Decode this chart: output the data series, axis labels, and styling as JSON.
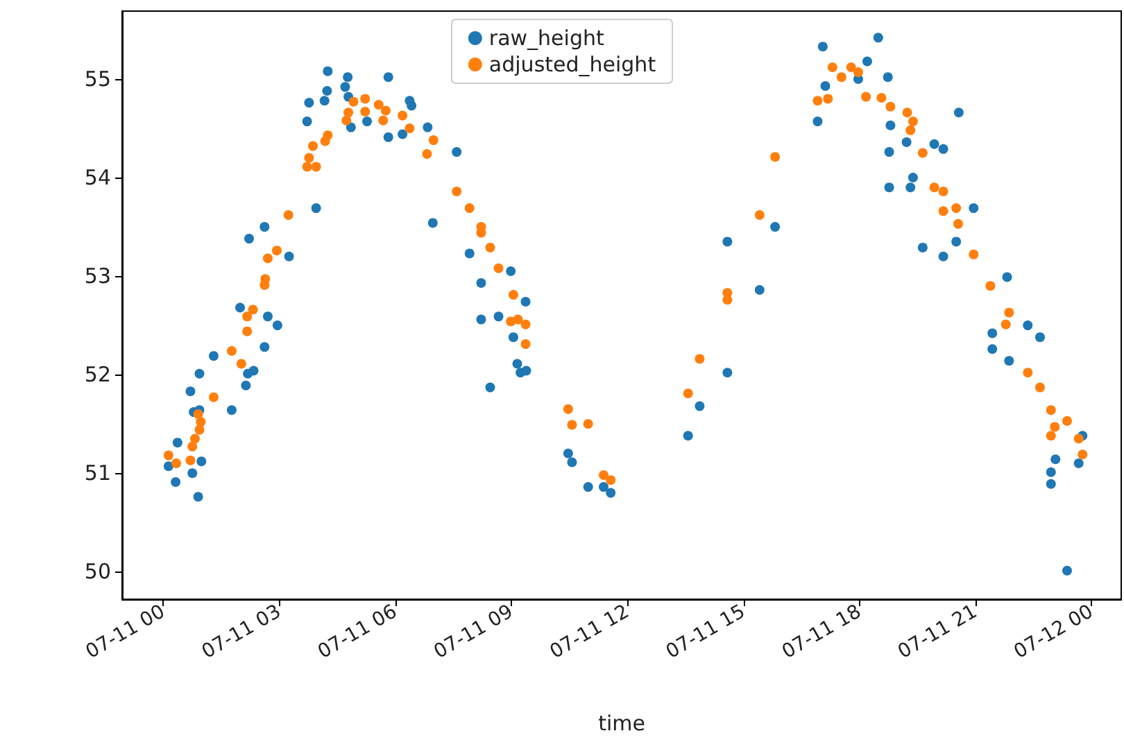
{
  "chart_data": {
    "type": "scatter",
    "xlabel": "time",
    "xlim": [
      "--07-10T22:56",
      "--07-12T00:46"
    ],
    "ylim": [
      49.72,
      55.69
    ],
    "xticks": [
      {
        "value": "--07-11T00:00",
        "label": "07-11 00"
      },
      {
        "value": "--07-11T03:00",
        "label": "07-11 03"
      },
      {
        "value": "--07-11T06:00",
        "label": "07-11 06"
      },
      {
        "value": "--07-11T09:00",
        "label": "07-11 09"
      },
      {
        "value": "--07-11T12:00",
        "label": "07-11 12"
      },
      {
        "value": "--07-11T15:00",
        "label": "07-11 15"
      },
      {
        "value": "--07-11T18:00",
        "label": "07-11 18"
      },
      {
        "value": "--07-11T21:00",
        "label": "07-11 21"
      },
      {
        "value": "--07-12T00:00",
        "label": "07-12 00"
      }
    ],
    "yticks": [
      50,
      51,
      52,
      53,
      54,
      55
    ],
    "grid": false,
    "legend": "top",
    "marker": "circle",
    "series": [
      {
        "name": "raw_height",
        "color": "#1f77b4",
        "x": [
          "--07-11T00:08",
          "--07-11T00:19",
          "--07-11T00:22",
          "--07-11T00:45",
          "--07-11T00:54",
          "--07-11T00:59",
          "--07-11T00:42",
          "--07-11T00:47",
          "--07-11T00:56",
          "--07-11T00:56",
          "--07-11T01:18",
          "--07-11T01:46",
          "--07-11T02:08",
          "--07-11T02:11",
          "--07-11T02:20",
          "--07-11T02:37",
          "--07-11T01:59",
          "--07-11T02:42",
          "--07-11T02:57",
          "--07-11T02:13",
          "--07-11T02:37",
          "--07-11T03:15",
          "--07-11T03:57",
          "--07-11T03:43",
          "--07-11T03:46",
          "--07-11T04:10",
          "--07-11T04:14",
          "--07-11T04:15",
          "--07-11T04:46",
          "--07-11T04:42",
          "--07-11T04:47",
          "--07-11T04:51",
          "--07-11T05:16",
          "--07-11T05:49",
          "--07-11T05:49",
          "--07-11T06:11",
          "--07-11T06:22",
          "--07-11T06:25",
          "--07-11T06:50",
          "--07-11T07:35",
          "--07-11T06:58",
          "--07-11T07:55",
          "--07-11T08:13",
          "--07-11T08:13",
          "--07-11T08:40",
          "--07-11T08:59",
          "--07-11T09:22",
          "--07-11T09:03",
          "--07-11T09:09",
          "--07-11T09:14",
          "--07-11T09:23",
          "--07-11T08:27",
          "--07-11T10:28",
          "--07-11T10:34",
          "--07-11T10:59",
          "--07-11T11:23",
          "--07-11T11:34",
          "--07-11T13:34",
          "--07-11T13:52",
          "--07-11T14:35",
          "--07-11T14:35",
          "--07-11T15:25",
          "--07-11T15:49",
          "--07-11T16:55",
          "--07-11T17:07",
          "--07-11T17:03",
          "--07-11T18:29",
          "--07-11T18:12",
          "--07-11T18:44",
          "--07-11T18:48",
          "--07-11T18:46",
          "--07-11T18:46",
          "--07-11T17:58",
          "--07-11T19:13",
          "--07-11T19:19",
          "--07-11T19:23",
          "--07-11T19:56",
          "--07-11T20:10",
          "--07-11T20:34",
          "--07-11T20:57",
          "--07-11T19:38",
          "--07-11T20:10",
          "--07-11T20:30",
          "--07-11T21:49",
          "--07-11T21:26",
          "--07-11T21:26",
          "--07-11T21:52",
          "--07-11T22:21",
          "--07-11T22:40",
          "--07-11T23:46",
          "--07-11T23:40",
          "--07-11T23:04",
          "--07-11T22:57",
          "--07-11T22:57",
          "--07-11T23:22"
        ],
        "values": [
          51.07,
          50.91,
          51.31,
          51.0,
          50.76,
          51.12,
          51.83,
          51.62,
          51.64,
          52.01,
          52.19,
          51.64,
          51.89,
          52.01,
          52.04,
          52.28,
          52.68,
          52.59,
          52.5,
          53.38,
          53.5,
          53.2,
          53.69,
          54.57,
          54.76,
          54.78,
          54.88,
          55.08,
          55.02,
          54.92,
          54.82,
          54.51,
          54.57,
          55.02,
          54.41,
          54.44,
          54.78,
          54.73,
          54.51,
          54.26,
          53.54,
          53.23,
          52.93,
          52.56,
          52.59,
          53.05,
          52.74,
          52.38,
          52.11,
          52.02,
          52.04,
          51.87,
          51.2,
          51.11,
          50.86,
          50.86,
          50.8,
          51.38,
          51.68,
          52.02,
          53.35,
          52.86,
          53.5,
          54.57,
          54.93,
          55.33,
          55.42,
          55.18,
          55.02,
          54.53,
          54.26,
          53.9,
          55.0,
          54.36,
          53.9,
          54.0,
          54.34,
          54.29,
          54.66,
          53.69,
          53.29,
          53.2,
          53.35,
          52.99,
          52.42,
          52.26,
          52.14,
          52.5,
          52.38,
          51.38,
          51.1,
          51.14,
          51.01,
          50.89,
          50.01
        ]
      },
      {
        "name": "adjusted_height",
        "color": "#ff7f0e",
        "x": [
          "--07-11T00:08",
          "--07-11T00:20",
          "--07-11T00:42",
          "--07-11T00:45",
          "--07-11T00:49",
          "--07-11T00:56",
          "--07-11T00:58",
          "--07-11T00:54",
          "--07-11T01:18",
          "--07-11T01:46",
          "--07-11T02:01",
          "--07-11T02:10",
          "--07-11T02:10",
          "--07-11T02:19",
          "--07-11T02:37",
          "--07-11T02:38",
          "--07-11T02:42",
          "--07-11T02:56",
          "--07-11T03:14",
          "--07-11T03:43",
          "--07-11T03:57",
          "--07-11T03:46",
          "--07-11T03:52",
          "--07-11T04:11",
          "--07-11T04:15",
          "--07-11T04:44",
          "--07-11T04:47",
          "--07-11T04:55",
          "--07-11T05:13",
          "--07-11T05:13",
          "--07-11T05:34",
          "--07-11T05:45",
          "--07-11T05:41",
          "--07-11T06:11",
          "--07-11T06:22",
          "--07-11T06:59",
          "--07-11T06:49",
          "--07-11T07:35",
          "--07-11T07:55",
          "--07-11T08:13",
          "--07-11T08:13",
          "--07-11T08:27",
          "--07-11T08:40",
          "--07-11T09:03",
          "--07-11T08:59",
          "--07-11T09:10",
          "--07-11T09:22",
          "--07-11T09:22",
          "--07-11T10:28",
          "--07-11T10:34",
          "--07-11T10:59",
          "--07-11T11:23",
          "--07-11T11:34",
          "--07-11T13:34",
          "--07-11T13:52",
          "--07-11T14:35",
          "--07-11T14:35",
          "--07-11T15:25",
          "--07-11T15:49",
          "--07-11T16:55",
          "--07-11T17:11",
          "--07-11T17:18",
          "--07-11T17:32",
          "--07-11T17:47",
          "--07-11T17:58",
          "--07-11T18:10",
          "--07-11T18:34",
          "--07-11T18:48",
          "--07-11T19:14",
          "--07-11T19:23",
          "--07-11T19:19",
          "--07-11T19:38",
          "--07-11T19:56",
          "--07-11T20:10",
          "--07-11T20:10",
          "--07-11T20:30",
          "--07-11T20:33",
          "--07-11T20:57",
          "--07-11T21:23",
          "--07-11T21:52",
          "--07-11T21:47",
          "--07-11T22:21",
          "--07-11T22:40",
          "--07-11T22:57",
          "--07-11T23:22",
          "--07-11T23:03",
          "--07-11T22:57",
          "--07-11T23:40",
          "--07-11T23:46"
        ],
        "values": [
          51.18,
          51.1,
          51.13,
          51.27,
          51.35,
          51.44,
          51.52,
          51.6,
          51.77,
          52.24,
          52.11,
          52.44,
          52.59,
          52.66,
          52.91,
          52.97,
          53.18,
          53.26,
          53.62,
          54.11,
          54.11,
          54.2,
          54.32,
          54.37,
          54.43,
          54.58,
          54.66,
          54.77,
          54.8,
          54.67,
          54.74,
          54.68,
          54.58,
          54.63,
          54.5,
          54.38,
          54.24,
          53.86,
          53.69,
          53.5,
          53.44,
          53.29,
          53.08,
          52.81,
          52.54,
          52.56,
          52.51,
          52.31,
          51.65,
          51.49,
          51.5,
          50.98,
          50.93,
          51.81,
          52.16,
          52.83,
          52.76,
          53.62,
          54.21,
          54.78,
          54.8,
          55.12,
          55.02,
          55.12,
          55.07,
          54.82,
          54.81,
          54.72,
          54.66,
          54.57,
          54.48,
          54.25,
          53.9,
          53.86,
          53.66,
          53.69,
          53.53,
          53.22,
          52.9,
          52.63,
          52.51,
          52.02,
          51.87,
          51.64,
          51.53,
          51.47,
          51.38,
          51.35,
          51.19
        ]
      }
    ]
  }
}
